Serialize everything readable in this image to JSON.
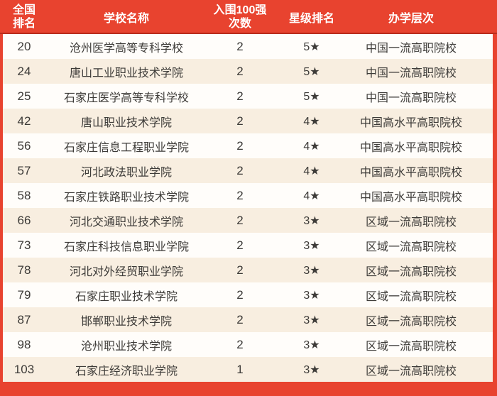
{
  "colors": {
    "header_bg": "#e8432f",
    "header_text": "#ffffff",
    "row_white": "#fffdfa",
    "row_cream": "#f8eee0",
    "body_text": "#3d3b38",
    "dark_red": "#b92d1c"
  },
  "chart_data": {
    "type": "table",
    "column_keys": [
      "rank",
      "name",
      "count",
      "star",
      "level"
    ],
    "columns": [
      {
        "key": "rank",
        "label": "全国排名",
        "lines": [
          "全国",
          "排名"
        ]
      },
      {
        "key": "name",
        "label": "学校名称"
      },
      {
        "key": "count",
        "label": "入围100强次数",
        "lines": [
          "入围100强",
          "次数"
        ]
      },
      {
        "key": "star",
        "label": "星级排名"
      },
      {
        "key": "level",
        "label": "办学层次"
      }
    ],
    "rows": [
      {
        "rank": "20",
        "name": "沧州医学高等专科学校",
        "count": "2",
        "star": "5★",
        "level": "中国一流高职院校"
      },
      {
        "rank": "24",
        "name": "唐山工业职业技术学院",
        "count": "2",
        "star": "5★",
        "level": "中国一流高职院校"
      },
      {
        "rank": "25",
        "name": "石家庄医学高等专科学校",
        "count": "2",
        "star": "5★",
        "level": "中国一流高职院校"
      },
      {
        "rank": "42",
        "name": "唐山职业技术学院",
        "count": "2",
        "star": "4★",
        "level": "中国高水平高职院校"
      },
      {
        "rank": "56",
        "name": "石家庄信息工程职业学院",
        "count": "2",
        "star": "4★",
        "level": "中国高水平高职院校"
      },
      {
        "rank": "57",
        "name": "河北政法职业学院",
        "count": "2",
        "star": "4★",
        "level": "中国高水平高职院校"
      },
      {
        "rank": "58",
        "name": "石家庄铁路职业技术学院",
        "count": "2",
        "star": "4★",
        "level": "中国高水平高职院校"
      },
      {
        "rank": "66",
        "name": "河北交通职业技术学院",
        "count": "2",
        "star": "3★",
        "level": "区域一流高职院校"
      },
      {
        "rank": "73",
        "name": "石家庄科技信息职业学院",
        "count": "2",
        "star": "3★",
        "level": "区域一流高职院校"
      },
      {
        "rank": "78",
        "name": "河北对外经贸职业学院",
        "count": "2",
        "star": "3★",
        "level": "区域一流高职院校"
      },
      {
        "rank": "79",
        "name": "石家庄职业技术学院",
        "count": "2",
        "star": "3★",
        "level": "区域一流高职院校"
      },
      {
        "rank": "87",
        "name": "邯郸职业技术学院",
        "count": "2",
        "star": "3★",
        "level": "区域一流高职院校"
      },
      {
        "rank": "98",
        "name": "沧州职业技术学院",
        "count": "2",
        "star": "3★",
        "level": "区域一流高职院校"
      },
      {
        "rank": "103",
        "name": "石家庄经济职业学院",
        "count": "1",
        "star": "3★",
        "level": "区域一流高职院校"
      }
    ]
  }
}
